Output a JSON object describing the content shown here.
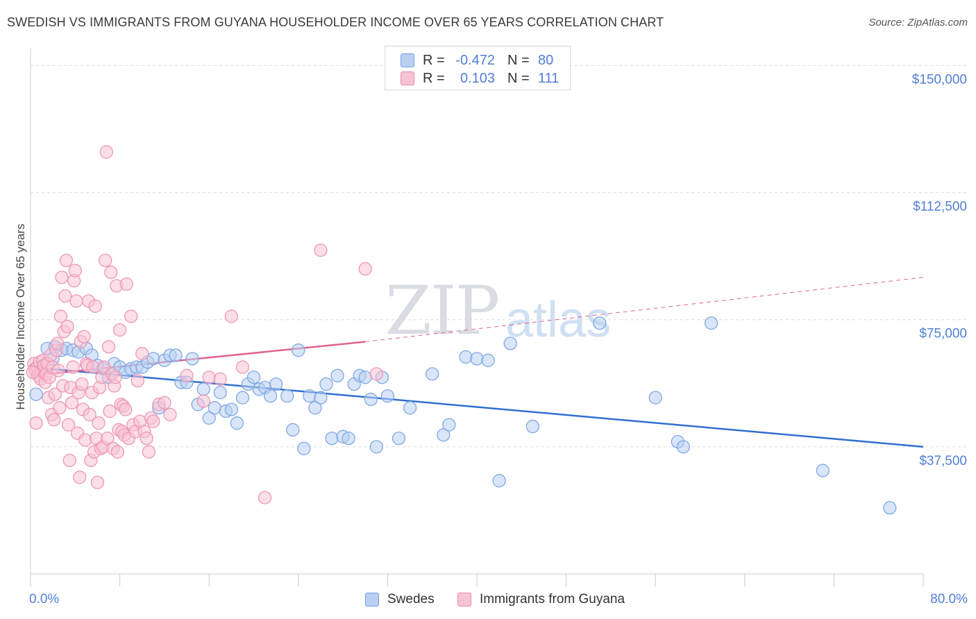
{
  "title": "SWEDISH VS IMMIGRANTS FROM GUYANA HOUSEHOLDER INCOME OVER 65 YEARS CORRELATION CHART",
  "source": "Source: ZipAtlas.com",
  "watermark": {
    "zip": "ZIP",
    "atlas": "atlas"
  },
  "colors": {
    "blue": "#4f7fd6",
    "blue_fill": "#b9d0f3",
    "blue_line": "#2f6fd0",
    "pink": "#e8749b",
    "pink_fill": "#f7c3d3",
    "pink_line": "#e0628f"
  },
  "legend": {
    "rows": [
      {
        "r_label": "R =",
        "r_value": "-0.472",
        "n_label": "N =",
        "n_value": "80"
      },
      {
        "r_label": "R =",
        "r_value": "0.103",
        "n_label": "N =",
        "n_value": "111"
      }
    ]
  },
  "bottom_legend": {
    "items": [
      "Swedes",
      "Immigrants from Guyana"
    ]
  },
  "chart_data": {
    "type": "scatter",
    "ylabel": "Householder Income Over 65 years",
    "xlim": [
      0,
      80
    ],
    "ylim": [
      0,
      155000
    ],
    "x_tick_labels": [
      "0.0%",
      "80.0%"
    ],
    "y_ticks": [
      37500,
      75000,
      112500,
      150000
    ],
    "y_tick_labels": [
      "$37,500",
      "$75,000",
      "$112,500",
      "$150,000"
    ],
    "grid": "horizontal dashed",
    "series": [
      {
        "name": "Swedes",
        "trend": {
          "x": [
            0,
            80
          ],
          "y": [
            61000,
            37500
          ]
        },
        "points": [
          [
            1.5,
            66500
          ],
          [
            2.2,
            67000
          ],
          [
            2.8,
            66000
          ],
          [
            3.2,
            66500
          ],
          [
            3.8,
            66000
          ],
          [
            4.3,
            65500
          ],
          [
            5,
            66500
          ],
          [
            5.5,
            64500
          ],
          [
            6,
            61500
          ],
          [
            6.5,
            60500
          ],
          [
            7,
            58000
          ],
          [
            7.5,
            62000
          ],
          [
            8,
            61000
          ],
          [
            8.5,
            59500
          ],
          [
            9,
            60500
          ],
          [
            9.5,
            61000
          ],
          [
            10,
            61000
          ],
          [
            10.5,
            62500
          ],
          [
            11,
            63500
          ],
          [
            11.5,
            49000
          ],
          [
            12,
            63000
          ],
          [
            12.5,
            64500
          ],
          [
            13,
            64500
          ],
          [
            13.5,
            56500
          ],
          [
            14,
            56500
          ],
          [
            14.5,
            63500
          ],
          [
            15,
            50000
          ],
          [
            15.5,
            54500
          ],
          [
            16,
            46000
          ],
          [
            16.5,
            49000
          ],
          [
            17,
            53500
          ],
          [
            17.5,
            48000
          ],
          [
            18,
            48500
          ],
          [
            18.5,
            44500
          ],
          [
            19,
            52000
          ],
          [
            19.5,
            56000
          ],
          [
            20,
            58000
          ],
          [
            20.5,
            54500
          ],
          [
            21,
            55000
          ],
          [
            21.5,
            52500
          ],
          [
            22,
            56000
          ],
          [
            23,
            52500
          ],
          [
            23.5,
            42500
          ],
          [
            24,
            66000
          ],
          [
            24.5,
            37000
          ],
          [
            25,
            52500
          ],
          [
            25.5,
            49000
          ],
          [
            26,
            52000
          ],
          [
            26.5,
            56000
          ],
          [
            27,
            40000
          ],
          [
            27.5,
            58500
          ],
          [
            28,
            40500
          ],
          [
            28.5,
            40000
          ],
          [
            29,
            56000
          ],
          [
            29.5,
            58500
          ],
          [
            30,
            58000
          ],
          [
            30.5,
            51500
          ],
          [
            31,
            37500
          ],
          [
            31.5,
            58000
          ],
          [
            32,
            52500
          ],
          [
            33,
            40000
          ],
          [
            34,
            49000
          ],
          [
            36,
            59000
          ],
          [
            37,
            41000
          ],
          [
            37.5,
            44000
          ],
          [
            39,
            64000
          ],
          [
            40,
            63500
          ],
          [
            41,
            63000
          ],
          [
            42,
            27500
          ],
          [
            43,
            68000
          ],
          [
            45,
            43500
          ],
          [
            51,
            74000
          ],
          [
            56,
            52000
          ],
          [
            58,
            39000
          ],
          [
            58.5,
            37500
          ],
          [
            61,
            74000
          ],
          [
            71,
            30500
          ],
          [
            77,
            19500
          ],
          [
            0.5,
            53000
          ],
          [
            2,
            63500
          ]
        ]
      },
      {
        "name": "Immigrants from Guyana",
        "trend": {
          "x": [
            0,
            30
          ],
          "y": [
            58500,
            68500
          ]
        },
        "trend_ext": {
          "x": [
            30,
            80
          ],
          "y": [
            68500,
            87500
          ]
        },
        "points": [
          [
            0.3,
            62000
          ],
          [
            0.4,
            60500
          ],
          [
            0.5,
            59500
          ],
          [
            0.6,
            61000
          ],
          [
            0.7,
            58500
          ],
          [
            0.8,
            62500
          ],
          [
            0.9,
            57500
          ],
          [
            1,
            60000
          ],
          [
            1.1,
            63000
          ],
          [
            1.2,
            61500
          ],
          [
            1.3,
            56500
          ],
          [
            1.4,
            59000
          ],
          [
            1.5,
            62000
          ],
          [
            1.6,
            52000
          ],
          [
            1.7,
            58000
          ],
          [
            1.8,
            64500
          ],
          [
            1.9,
            47000
          ],
          [
            2,
            61000
          ],
          [
            2.1,
            45500
          ],
          [
            2.2,
            53000
          ],
          [
            2.3,
            66000
          ],
          [
            2.4,
            68000
          ],
          [
            2.5,
            60000
          ],
          [
            2.6,
            49000
          ],
          [
            2.7,
            76000
          ],
          [
            2.8,
            87500
          ],
          [
            2.9,
            55500
          ],
          [
            3,
            71500
          ],
          [
            3.1,
            82000
          ],
          [
            3.2,
            92500
          ],
          [
            3.3,
            73000
          ],
          [
            3.4,
            44000
          ],
          [
            3.5,
            33500
          ],
          [
            3.6,
            55000
          ],
          [
            3.7,
            50500
          ],
          [
            3.8,
            61000
          ],
          [
            3.9,
            86500
          ],
          [
            4,
            89500
          ],
          [
            4.1,
            80500
          ],
          [
            4.2,
            41500
          ],
          [
            4.3,
            53500
          ],
          [
            4.4,
            28500
          ],
          [
            4.5,
            68500
          ],
          [
            4.6,
            56000
          ],
          [
            4.7,
            48500
          ],
          [
            4.8,
            70000
          ],
          [
            4.9,
            39500
          ],
          [
            5,
            62000
          ],
          [
            5.1,
            61500
          ],
          [
            5.2,
            80500
          ],
          [
            5.3,
            47000
          ],
          [
            5.4,
            33500
          ],
          [
            5.5,
            53500
          ],
          [
            5.6,
            61000
          ],
          [
            5.7,
            36000
          ],
          [
            5.8,
            79000
          ],
          [
            5.9,
            40000
          ],
          [
            6,
            27000
          ],
          [
            6.1,
            44500
          ],
          [
            6.2,
            55000
          ],
          [
            6.3,
            37000
          ],
          [
            6.4,
            58000
          ],
          [
            6.5,
            37500
          ],
          [
            6.6,
            61000
          ],
          [
            6.7,
            92500
          ],
          [
            6.8,
            124500
          ],
          [
            6.9,
            40000
          ],
          [
            7,
            67000
          ],
          [
            7.1,
            48000
          ],
          [
            7.2,
            89000
          ],
          [
            7.3,
            59000
          ],
          [
            7.4,
            37000
          ],
          [
            7.5,
            55500
          ],
          [
            7.6,
            58000
          ],
          [
            7.7,
            85000
          ],
          [
            7.8,
            36000
          ],
          [
            7.9,
            42500
          ],
          [
            8,
            72000
          ],
          [
            8.1,
            50000
          ],
          [
            8.2,
            42000
          ],
          [
            8.3,
            49500
          ],
          [
            8.4,
            41000
          ],
          [
            8.5,
            48500
          ],
          [
            8.6,
            85500
          ],
          [
            8.8,
            40000
          ],
          [
            9,
            76000
          ],
          [
            9.2,
            44000
          ],
          [
            9.4,
            42000
          ],
          [
            9.6,
            57000
          ],
          [
            9.8,
            45000
          ],
          [
            10,
            65000
          ],
          [
            10.2,
            42000
          ],
          [
            10.4,
            40000
          ],
          [
            10.6,
            36000
          ],
          [
            10.8,
            46000
          ],
          [
            11,
            45000
          ],
          [
            11.5,
            50000
          ],
          [
            12,
            50500
          ],
          [
            12.5,
            47000
          ],
          [
            14,
            58500
          ],
          [
            15.5,
            51000
          ],
          [
            16,
            58000
          ],
          [
            17,
            57500
          ],
          [
            18,
            76000
          ],
          [
            19,
            61000
          ],
          [
            21,
            22500
          ],
          [
            26,
            95500
          ],
          [
            30,
            90000
          ],
          [
            31,
            59000
          ],
          [
            0.2,
            59500
          ],
          [
            0.5,
            44500
          ]
        ]
      }
    ]
  }
}
